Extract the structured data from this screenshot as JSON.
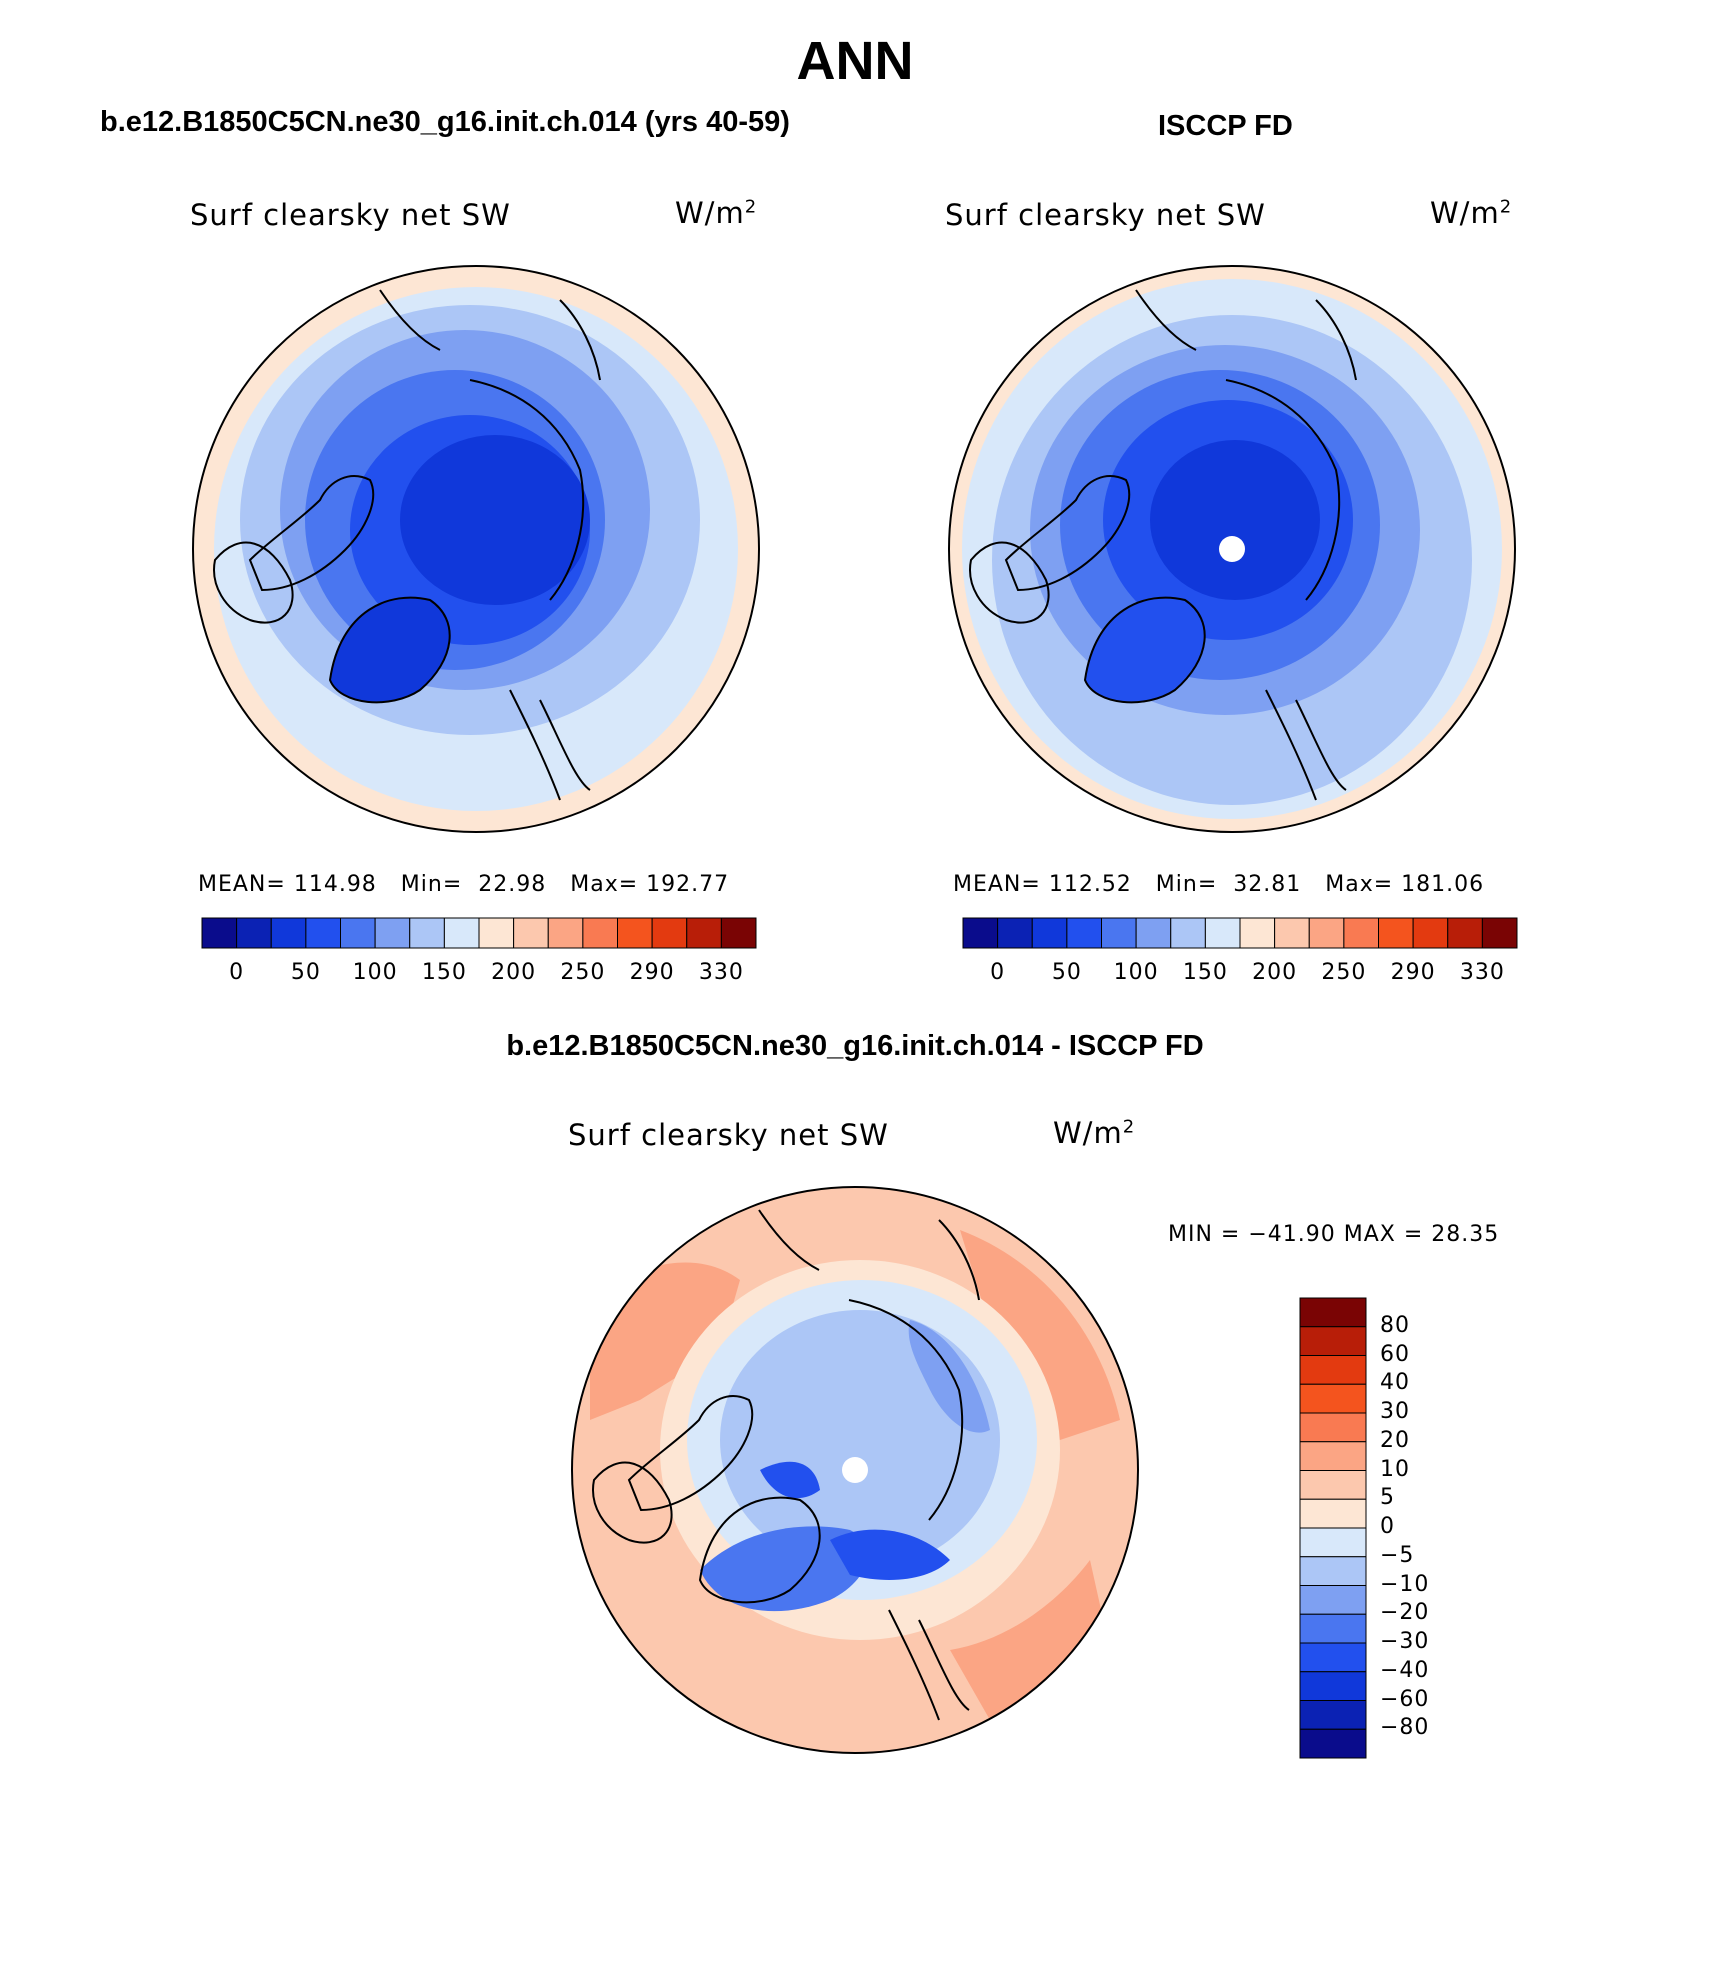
{
  "figure": {
    "title": "ANN",
    "panel_left_title": "b.e12.B1850C5CN.ne30_g16.init.ch.014 (yrs 40-59)",
    "panel_right_title": "ISCCP FD",
    "panel_bottom_title": "b.e12.B1850C5CN.ne30_g16.init.ch.014 - ISCCP FD"
  },
  "panels": {
    "left": {
      "variable": "Surf clearsky net SW",
      "unit_base": "W/m",
      "unit_exp": "2",
      "mean_label": "MEAN=",
      "mean": "114.98",
      "min_label": "Min=",
      "min": "22.98",
      "max_label": "Max=",
      "max": "192.77"
    },
    "right": {
      "variable": "Surf clearsky net SW",
      "unit_base": "W/m",
      "unit_exp": "2",
      "mean_label": "MEAN=",
      "mean": "112.52",
      "min_label": "Min=",
      "min": "32.81",
      "max_label": "Max=",
      "max": "181.06"
    },
    "bottom": {
      "variable": "Surf clearsky net SW",
      "unit_base": "W/m",
      "unit_exp": "2",
      "minmax_text": "MIN = −41.90 MAX =  28.35"
    }
  },
  "colorbars": {
    "absolute": {
      "tick_labels": [
        "0",
        "50",
        "100",
        "150",
        "200",
        "250",
        "290",
        "330"
      ],
      "colors": [
        "#0a0c8c",
        "#0b22b4",
        "#1038da",
        "#2250ee",
        "#4a76f0",
        "#7ea0f2",
        "#acc6f6",
        "#d8e8fa",
        "#fde6d4",
        "#fcc8ae",
        "#fba584",
        "#f97a52",
        "#f4541e",
        "#e33a10",
        "#b81e08",
        "#7a0404"
      ]
    },
    "difference": {
      "tick_labels": [
        "80",
        "60",
        "40",
        "30",
        "20",
        "10",
        "5",
        "0",
        "−5",
        "−10",
        "−20",
        "−30",
        "−40",
        "−60",
        "−80"
      ],
      "colors": [
        "#7a0404",
        "#b81e08",
        "#e33a10",
        "#f4541e",
        "#f97a52",
        "#fba584",
        "#fcc8ae",
        "#fde6d4",
        "#d8e8fa",
        "#acc6f6",
        "#7ea0f2",
        "#4a76f0",
        "#2250ee",
        "#1038da",
        "#0b22b4",
        "#0a0c8c"
      ]
    }
  }
}
